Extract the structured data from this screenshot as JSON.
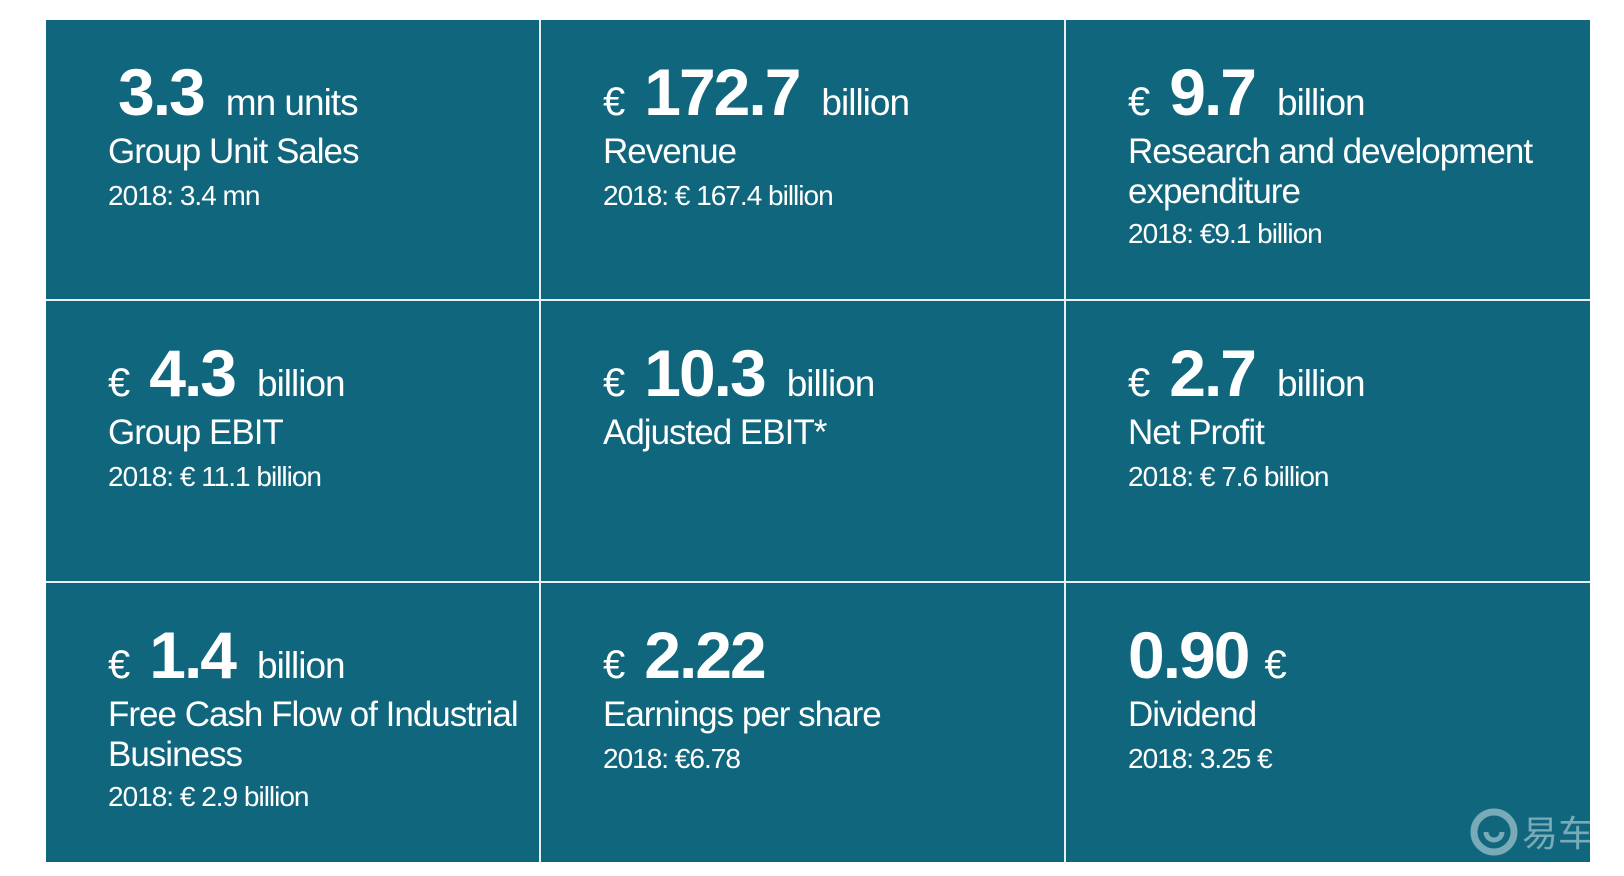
{
  "tiles": [
    {
      "currency": "",
      "value": "3.3",
      "unit": "mn units",
      "trail_currency": "",
      "label": "Group Unit Sales",
      "previous": "2018: 3.4 mn"
    },
    {
      "currency": "€",
      "value": "172.7",
      "unit": "billion",
      "trail_currency": "",
      "label": "Revenue",
      "previous": "2018: € 167.4 billion"
    },
    {
      "currency": "€",
      "value": "9.7",
      "unit": "billion",
      "trail_currency": "",
      "label": "Research and development expenditure",
      "previous": "2018: €9.1 billion"
    },
    {
      "currency": "€",
      "value": "4.3",
      "unit": "billion",
      "trail_currency": "",
      "label": "Group EBIT",
      "previous": "2018: € 11.1 billion"
    },
    {
      "currency": "€",
      "value": "10.3",
      "unit": "billion",
      "trail_currency": "",
      "label": "Adjusted EBIT*",
      "previous": ""
    },
    {
      "currency": "€",
      "value": "2.7",
      "unit": "billion",
      "trail_currency": "",
      "label": "Net Profit",
      "previous": "2018: € 7.6 billion"
    },
    {
      "currency": "€",
      "value": "1.4",
      "unit": "billion",
      "trail_currency": "",
      "label": "Free Cash Flow of Industrial Business",
      "previous": "2018: € 2.9 billion"
    },
    {
      "currency": "€",
      "value": "2.22",
      "unit": "",
      "trail_currency": "",
      "label": "Earnings per share",
      "previous": "2018: €6.78"
    },
    {
      "currency": "",
      "value": "0.90",
      "unit": "",
      "trail_currency": "€",
      "label": "Dividend",
      "previous": "2018: 3.25 €"
    }
  ],
  "colors": {
    "tile": "#10667c",
    "text": "#ffffff",
    "divider": "#e6f0f3"
  },
  "watermark": {
    "icon": "logo-watermark-icon",
    "text": "易车"
  }
}
